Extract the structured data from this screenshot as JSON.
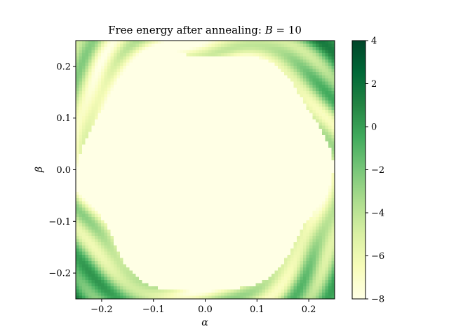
{
  "chart_data": {
    "type": "heatmap",
    "title_prefix": "Free energy after annealing: ",
    "title_var": "B",
    "title_rest": " = 10",
    "xlabel": "α",
    "ylabel": "β",
    "xlim": [
      -0.25,
      0.25
    ],
    "ylim": [
      -0.25,
      0.25
    ],
    "x_ticks": [
      -0.2,
      -0.1,
      0.0,
      0.1,
      0.2
    ],
    "y_ticks": [
      -0.2,
      -0.1,
      0.0,
      0.1,
      0.2
    ],
    "x_tick_labels": [
      "−0.2",
      "−0.1",
      "0.0",
      "0.1",
      "0.2"
    ],
    "y_tick_labels": [
      "−0.2",
      "−0.1",
      "0.0",
      "0.1",
      "0.2"
    ],
    "colorbar": {
      "range": [
        -8,
        4
      ],
      "ticks": [
        4,
        2,
        0,
        -2,
        -4,
        -6,
        -8
      ],
      "tick_labels": [
        "4",
        "2",
        "0",
        "−2",
        "−4",
        "−6",
        "−8"
      ],
      "colormap": "YlGn",
      "colors": [
        "#ffffe5",
        "#f7fcb9",
        "#d9f0a3",
        "#addd8e",
        "#78c679",
        "#41ab5d",
        "#238443",
        "#006837",
        "#004529"
      ]
    },
    "field_description": {
      "center": [
        0.0,
        0.0
      ],
      "flat_region_value": -8,
      "flat_region_radius": 0.235,
      "corner_value_max": 4
    }
  }
}
